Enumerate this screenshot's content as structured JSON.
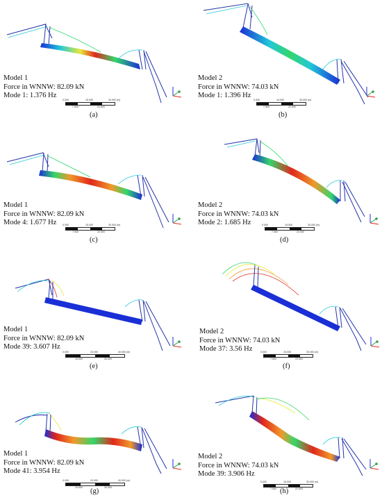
{
  "colors": {
    "blue": "#1a2fd6",
    "cyan": "#22c8d8",
    "green": "#33d66a",
    "yellow": "#e8e83a",
    "orange": "#f0982a",
    "red": "#e0281c",
    "navy": "#2233aa"
  },
  "panels": [
    {
      "model": "Model 1",
      "force": "Force in WNNW: 82.09 kN",
      "mode": "Mode 1: 1.376 Hz",
      "label": "(a)",
      "scale": {
        "top": [
          "0.000",
          "15.000",
          "30.000 (m)"
        ],
        "bottom": [
          "7.500",
          "22.500"
        ]
      }
    },
    {
      "model": "Model 2",
      "force": "Force in WNNW: 74.03 kN",
      "mode": "Mode 1: 1.396 Hz",
      "label": "(b)",
      "scale": {
        "top": [
          "0.000",
          "15.000",
          "30.000 (m)"
        ],
        "bottom": [
          "7.500",
          "22.500"
        ]
      }
    },
    {
      "model": "Model 1",
      "force": "Force in WNNW: 82.09 kN",
      "mode": "Mode 4: 1.677 Hz",
      "label": "(c)",
      "scale": {
        "top": [
          "0.000",
          "15.000",
          "30.000 (m)"
        ],
        "bottom": [
          "7.500",
          "22.500"
        ]
      }
    },
    {
      "model": "Model 2",
      "force": "Force in WNNW: 74.03 kN",
      "mode": "Mode 2: 1.685 Hz",
      "label": "(d)",
      "scale": {
        "top": [
          "0.000",
          "15.000",
          "30.000 (m)"
        ],
        "bottom": [
          "7.500",
          "22.500"
        ]
      }
    },
    {
      "model": "Model 1",
      "force": "Force in WNNW: 82.09 kN",
      "mode": "Mode 39: 3.607 Hz",
      "label": "(e)",
      "scale": {
        "top": [
          "0.000",
          "20.000",
          "40.000 (m)"
        ],
        "bottom": [
          "10.000",
          "30.000"
        ]
      }
    },
    {
      "model": "Model 2",
      "force": "Force in WNNW: 74.03 kN",
      "mode": "Mode 37: 3.56 Hz",
      "label": "(f)",
      "scale": {
        "top": [
          "0.000",
          "15.000",
          "30.000 (m)"
        ],
        "bottom": [
          "7.500",
          "22.500"
        ]
      }
    },
    {
      "model": "Model 1",
      "force": "Force in WNNW: 82.09 kN",
      "mode": "Mode 41: 3.954 Hz",
      "label": "(g)",
      "scale": {
        "top": [
          "0.000",
          "20.000",
          "40.000 (m)"
        ],
        "bottom": [
          "10.000",
          "30.000"
        ]
      }
    },
    {
      "model": "Model 2",
      "force": "Force in WNNW: 74.03 kN",
      "mode": "Mode 39: 3.906 Hz",
      "label": "(h)",
      "scale": {
        "top": [
          "0.000",
          "15.000",
          "30.000 (m)"
        ],
        "bottom": [
          "7.500",
          "22.500"
        ]
      }
    }
  ],
  "axis_letters": {
    "x": "X",
    "y": "Y",
    "z": "Z"
  }
}
